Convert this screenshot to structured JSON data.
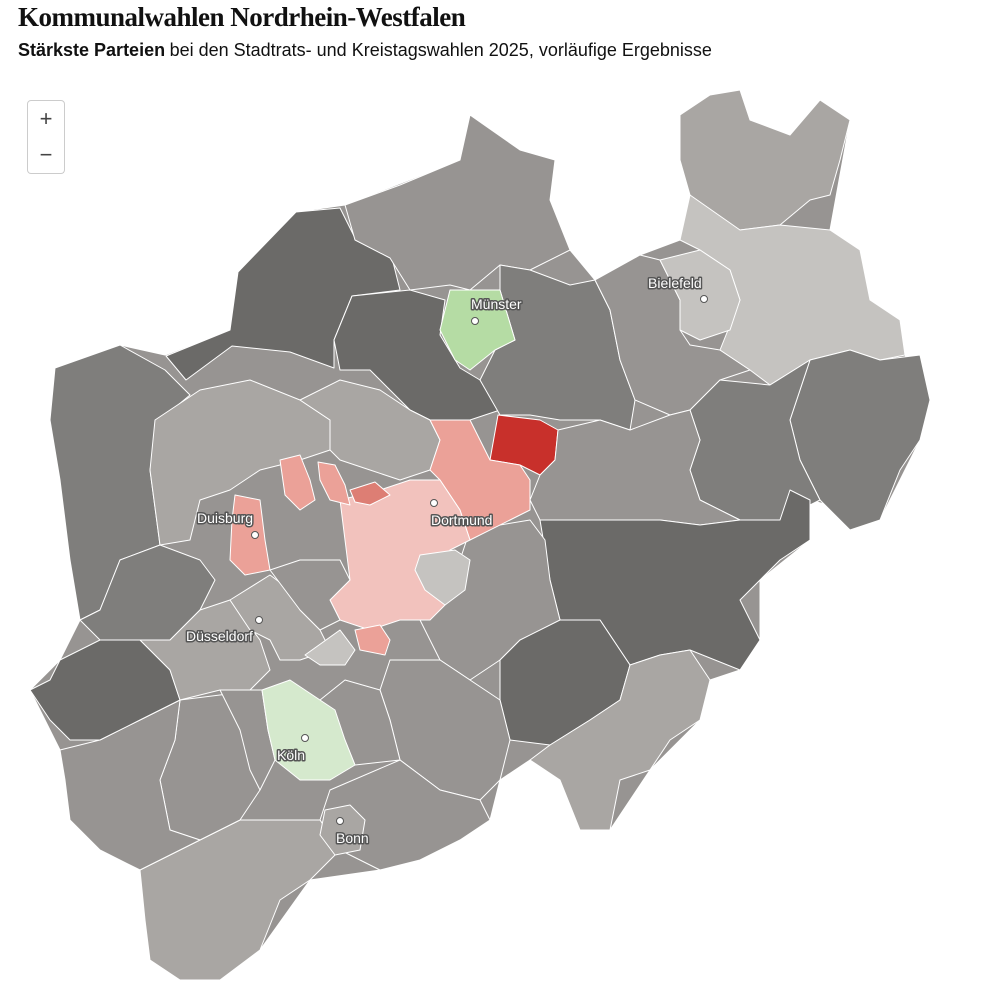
{
  "header": {
    "title": "Kommunalwahlen Nordrhein-Westfalen",
    "subtitle_bold": "Stärkste Parteien",
    "subtitle_rest": "bei den Stadtrats- und Kreistagswahlen 2025, vorläufige Ergebnisse"
  },
  "zoom": {
    "in": "+",
    "out": "−"
  },
  "cities": [
    {
      "name": "Münster"
    },
    {
      "name": "Bielefeld"
    },
    {
      "name": "Dortmund"
    },
    {
      "name": "Duisburg"
    },
    {
      "name": "Düsseldorf"
    },
    {
      "name": "Köln"
    },
    {
      "name": "Bonn"
    }
  ]
}
